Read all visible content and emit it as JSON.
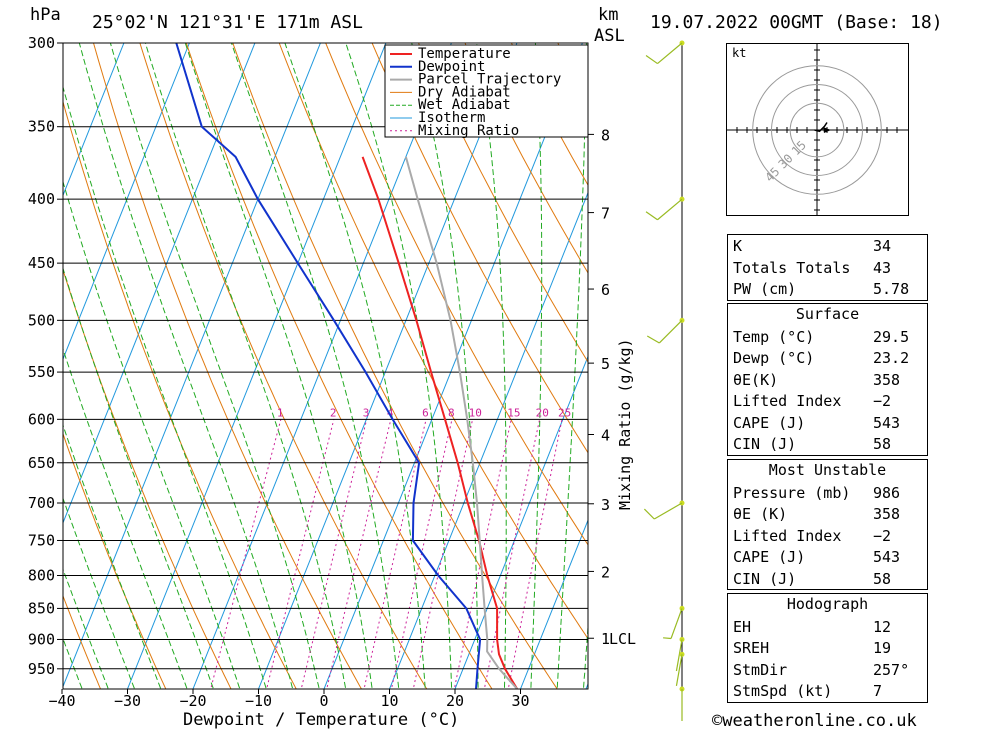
{
  "header": {
    "hpa_label": "hPa",
    "location": "25°02'N 121°31'E 171m ASL",
    "km_label": "km",
    "asl_label": "ASL",
    "datetime": "19.07.2022 00GMT (Base: 18)"
  },
  "chart_data": {
    "type": "line",
    "title": "25°02'N 121°31'E 171m ASL",
    "xlabel": "Dewpoint / Temperature (°C)",
    "ylabel": "hPa",
    "x_ticks": [
      -40,
      -30,
      -20,
      -10,
      0,
      10,
      20,
      30
    ],
    "x_tick_labels": [
      "−40",
      "−30",
      "−20",
      "−10",
      "0",
      "10",
      "20",
      "30"
    ],
    "pressure_levels": [
      300,
      350,
      400,
      450,
      500,
      550,
      600,
      650,
      700,
      750,
      800,
      850,
      900,
      950
    ],
    "pressure_labels": [
      "300",
      "350",
      "400",
      "450",
      "500",
      "550",
      "600",
      "650",
      "700",
      "750",
      "800",
      "850",
      "900",
      "950"
    ],
    "km_ticks": [
      1,
      2,
      3,
      4,
      5,
      6,
      7,
      8
    ],
    "km_labels": [
      "1",
      "2",
      "3",
      "4",
      "5",
      "6",
      "7",
      "8"
    ],
    "km_pressures": [
      898,
      794,
      701,
      617,
      541,
      472,
      410,
      355
    ],
    "lcl_label": "LCL",
    "mixing_ratio_axis_label": "Mixing Ratio (g/kg)",
    "mixing_ratios": [
      1,
      2,
      3,
      4,
      6,
      8,
      10,
      15,
      20,
      25
    ],
    "mixing_ratio_labels": [
      "1",
      "2",
      "3",
      "4",
      "6",
      "8",
      "10",
      "15",
      "20",
      "25"
    ],
    "legend": [
      "Temperature",
      "Dewpoint",
      "Parcel Trajectory",
      "Dry Adiabat",
      "Wet Adiabat",
      "Isotherm",
      "Mixing Ratio"
    ],
    "series": [
      {
        "name": "Temperature",
        "color": "#ee2222",
        "points": [
          [
            986,
            29.5
          ],
          [
            950,
            26.4
          ],
          [
            925,
            24.6
          ],
          [
            900,
            23.4
          ],
          [
            850,
            21.5
          ],
          [
            800,
            18.0
          ],
          [
            750,
            14.6
          ],
          [
            700,
            10.6
          ],
          [
            650,
            6.6
          ],
          [
            600,
            2.0
          ],
          [
            550,
            -3.0
          ],
          [
            500,
            -8.4
          ],
          [
            450,
            -14.6
          ],
          [
            400,
            -21.6
          ],
          [
            370,
            -26.6
          ]
        ]
      },
      {
        "name": "Dewpoint",
        "color": "#1133cc",
        "points": [
          [
            986,
            23.2
          ],
          [
            950,
            22.2
          ],
          [
            900,
            20.8
          ],
          [
            850,
            16.8
          ],
          [
            800,
            10.5
          ],
          [
            750,
            4.5
          ],
          [
            700,
            2.3
          ],
          [
            650,
            0.7
          ],
          [
            600,
            -6.0
          ],
          [
            550,
            -13.0
          ],
          [
            500,
            -21.0
          ],
          [
            450,
            -30.0
          ],
          [
            400,
            -40.0
          ],
          [
            370,
            -46.0
          ],
          [
            350,
            -53.0
          ],
          [
            300,
            -62.0
          ]
        ]
      },
      {
        "name": "Parcel Trajectory",
        "color": "#aaaaaa",
        "points": [
          [
            986,
            29.5
          ],
          [
            950,
            25.5
          ],
          [
            920,
            22.6
          ],
          [
            900,
            21.9
          ],
          [
            850,
            19.6
          ],
          [
            800,
            17.2
          ],
          [
            750,
            14.7
          ],
          [
            700,
            12.0
          ],
          [
            650,
            8.9
          ],
          [
            600,
            5.4
          ],
          [
            550,
            1.4
          ],
          [
            500,
            -3.2
          ],
          [
            450,
            -8.8
          ],
          [
            400,
            -15.6
          ],
          [
            370,
            -20.0
          ]
        ]
      }
    ],
    "wind_barbs": [
      {
        "pressure": 300,
        "dir_deg": 230,
        "speed_kt": 10
      },
      {
        "pressure": 400,
        "dir_deg": 230,
        "speed_kt": 10
      },
      {
        "pressure": 500,
        "dir_deg": 225,
        "speed_kt": 10
      },
      {
        "pressure": 700,
        "dir_deg": 240,
        "speed_kt": 10
      },
      {
        "pressure": 850,
        "dir_deg": 200,
        "speed_kt": 5
      },
      {
        "pressure": 900,
        "dir_deg": 190,
        "speed_kt": 3
      },
      {
        "pressure": 925,
        "dir_deg": 190,
        "speed_kt": 3
      },
      {
        "pressure": 986,
        "dir_deg": 180,
        "speed_kt": 3
      }
    ]
  },
  "hodograph": {
    "unit_label": "kt",
    "ring_labels": [
      "15",
      "30",
      "45"
    ],
    "ring_speeds": [
      15,
      30,
      45
    ],
    "points_kt": [
      [
        -2,
        0
      ],
      [
        2,
        -1
      ],
      [
        4,
        1
      ],
      [
        6,
        3
      ],
      [
        8,
        6
      ]
    ]
  },
  "indices": {
    "general": [
      {
        "label": "K",
        "value": "34"
      },
      {
        "label": "Totals Totals",
        "value": "43"
      },
      {
        "label": "PW (cm)",
        "value": "5.78"
      }
    ],
    "surface_title": "Surface",
    "surface": [
      {
        "label": "Temp (°C)",
        "value": "29.5"
      },
      {
        "label": "Dewp (°C)",
        "value": "23.2"
      },
      {
        "label": "θE(K)",
        "value": "358"
      },
      {
        "label": "Lifted Index",
        "value": "−2"
      },
      {
        "label": "CAPE (J)",
        "value": "543"
      },
      {
        "label": "CIN (J)",
        "value": "58"
      }
    ],
    "mu_title": "Most Unstable",
    "mu": [
      {
        "label": "Pressure (mb)",
        "value": "986"
      },
      {
        "label": "θE (K)",
        "value": "358"
      },
      {
        "label": "Lifted Index",
        "value": "−2"
      },
      {
        "label": "CAPE (J)",
        "value": "543"
      },
      {
        "label": "CIN (J)",
        "value": "58"
      }
    ],
    "hodo_title": "Hodograph",
    "hodo": [
      {
        "label": "EH",
        "value": "12"
      },
      {
        "label": "SREH",
        "value": "19"
      },
      {
        "label": "StmDir",
        "value": "257°"
      },
      {
        "label": "StmSpd (kt)",
        "value": "7"
      }
    ]
  },
  "footer": {
    "copyright": "©weatheronline.co.uk"
  },
  "colors": {
    "temperature": "#ee2222",
    "dewpoint": "#1133cc",
    "parcel": "#aaaaaa",
    "dry_adiabat": "#e07a10",
    "wet_adiabat": "#22aa22",
    "isotherm": "#2299dd",
    "mixing_ratio": "#cc2299",
    "wind_barb": "#99bb22"
  }
}
